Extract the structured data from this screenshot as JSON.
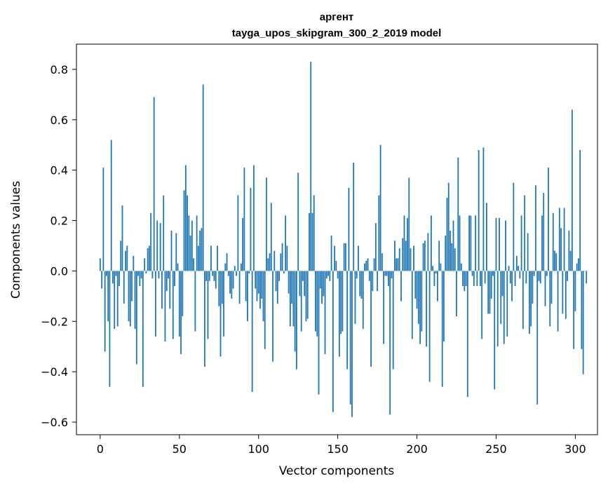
{
  "chart_data": {
    "type": "bar",
    "title": "аргент",
    "subtitle": "tayga_upos_skipgram_300_2_2019 model",
    "xlabel": "Vector components",
    "ylabel": "Components values",
    "xlim": [
      -15,
      314
    ],
    "ylim": [
      -0.65,
      0.9
    ],
    "x_ticks": [
      0,
      50,
      100,
      150,
      200,
      250,
      300
    ],
    "y_ticks": [
      -0.6,
      -0.4,
      -0.2,
      0.0,
      0.2,
      0.4,
      0.6,
      0.8
    ],
    "y_tick_labels": [
      "−0.6",
      "−0.4",
      "−0.2",
      "0.0",
      "0.2",
      "0.4",
      "0.6",
      "0.8"
    ],
    "x_tick_labels": [
      "0",
      "50",
      "100",
      "150",
      "200",
      "250",
      "300"
    ],
    "bar_color": "#1f77b4",
    "grid": false,
    "values": [
      0.05,
      -0.07,
      0.41,
      -0.32,
      -0.02,
      -0.2,
      -0.46,
      0.52,
      -0.05,
      -0.23,
      -0.02,
      -0.22,
      -0.06,
      0.12,
      0.26,
      -0.13,
      0.08,
      0.1,
      -0.2,
      -0.22,
      -0.12,
      0.06,
      -0.23,
      -0.37,
      -0.02,
      -0.06,
      -0.03,
      -0.46,
      0.05,
      -0.01,
      0.09,
      0.1,
      0.23,
      -0.03,
      0.69,
      -0.26,
      0.2,
      -0.03,
      0.19,
      -0.15,
      0.3,
      -0.28,
      -0.08,
      -0.03,
      -0.15,
      0.16,
      -0.27,
      -0.06,
      0.15,
      0.03,
      -0.26,
      -0.33,
      -0.18,
      0.32,
      0.42,
      0.3,
      0.22,
      0.14,
      0.2,
      0.05,
      -0.24,
      0.22,
      0.1,
      0.16,
      0.17,
      0.74,
      -0.38,
      -0.04,
      -0.27,
      -0.04,
      0.1,
      -0.02,
      -0.04,
      -0.07,
      0.1,
      -0.14,
      -0.34,
      -0.13,
      -0.26,
      0.03,
      0.07,
      -0.02,
      -0.09,
      -0.11,
      -0.07,
      0.02,
      -0.02,
      0.3,
      -0.13,
      0.03,
      0.21,
      0.41,
      -0.12,
      -0.2,
      -0.01,
      0.33,
      -0.48,
      0.42,
      -0.07,
      -0.12,
      -0.09,
      -0.15,
      -0.11,
      -0.2,
      -0.31,
      0.37,
      0.05,
      0.07,
      0.27,
      -0.36,
      0.08,
      -0.08,
      -0.13,
      -0.04,
      0.07,
      0.11,
      -0.01,
      0.22,
      0.1,
      -0.09,
      -0.22,
      -0.13,
      -0.22,
      -0.32,
      -0.39,
      0.39,
      -0.1,
      -0.24,
      -0.04,
      -0.1,
      -0.2,
      -0.19,
      0.23,
      0.83,
      0.23,
      0.3,
      -0.24,
      -0.26,
      -0.49,
      -0.07,
      -0.13,
      -0.1,
      -0.33,
      -0.03,
      -0.02,
      -0.04,
      0.14,
      -0.56,
      0.1,
      0.04,
      -0.03,
      -0.34,
      -0.25,
      -0.24,
      0.11,
      0.11,
      -0.39,
      0.33,
      -0.53,
      -0.58,
      0.43,
      -0.21,
      -0.03,
      0.1,
      -0.1,
      -0.11,
      -0.23,
      0.03,
      0.04,
      0.05,
      -0.04,
      -0.38,
      -0.08,
      0.05,
      0.19,
      -0.08,
      0.3,
      0.5,
      0.07,
      -0.29,
      -0.02,
      -0.02,
      -0.06,
      -0.57,
      -0.03,
      -0.39,
      0.12,
      0.05,
      0.05,
      0.09,
      -0.12,
      0.13,
      0.22,
      0.12,
      0.21,
      0.37,
      0.09,
      -0.27,
      0.1,
      -0.11,
      -0.15,
      -0.21,
      -0.29,
      -0.24,
      0.11,
      0.12,
      -0.3,
      0.15,
      -0.44,
      0.22,
      0.02,
      -0.06,
      -0.01,
      -0.12,
      0.12,
      0.03,
      -0.46,
      -0.28,
      0.14,
      0.29,
      0.35,
      0.16,
      0.11,
      0.2,
      0.09,
      -0.18,
      0.45,
      0.22,
      0.03,
      -0.06,
      -0.08,
      -0.06,
      -0.5,
      0.22,
      0.22,
      -0.02,
      -0.06,
      0.22,
      -0.06,
      0.48,
      -0.06,
      -0.27,
      0.49,
      -0.05,
      0.27,
      -0.17,
      -0.17,
      -0.11,
      -0.02,
      -0.47,
      0.21,
      -0.3,
      0.21,
      -0.21,
      -0.1,
      -0.29,
      0.2,
      -0.26,
      0.02,
      -0.05,
      -0.12,
      0.35,
      -0.06,
      0.06,
      0.02,
      -0.03,
      0.22,
      -0.23,
      0.3,
      -0.05,
      0.15,
      -0.25,
      -0.22,
      -0.13,
      -0.02,
      0.34,
      -0.53,
      -0.04,
      -0.05,
      0.22,
      0.31,
      -0.14,
      -0.02,
      0.41,
      -0.22,
      -0.13,
      0.23,
      0.08,
      0.07,
      -0.24,
      0.25,
      0.17,
      -0.17,
      0.25,
      -0.19,
      -0.04,
      0.16,
      0.08,
      0.64,
      -0.31,
      -0.16,
      0.03,
      0.05,
      0.48,
      -0.31,
      -0.41,
      0.0,
      -0.05
    ]
  }
}
